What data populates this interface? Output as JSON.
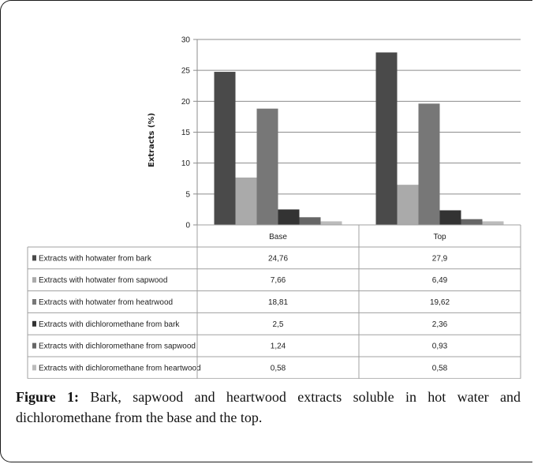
{
  "chart_data": {
    "type": "bar",
    "ylabel": "Extracts (%)",
    "ylim": [
      0,
      30
    ],
    "yticks": [
      "0",
      "5",
      "10",
      "15",
      "20",
      "25",
      "30"
    ],
    "categories": [
      "Base",
      "Top"
    ],
    "series": [
      {
        "name": "Extracts with hotwater from bark",
        "values": [
          24.76,
          27.9
        ],
        "labels": [
          "24,76",
          "27,9"
        ],
        "color": "#4a4a4a"
      },
      {
        "name": "Extracts with hotwater from sapwood",
        "values": [
          7.66,
          6.49
        ],
        "labels": [
          "7,66",
          "6,49"
        ],
        "color": "#aaaaaa"
      },
      {
        "name": "Extracts with hotwater from heatrwood",
        "values": [
          18.81,
          19.62
        ],
        "labels": [
          "18,81",
          "19,62"
        ],
        "color": "#777777"
      },
      {
        "name": "Extracts with dichloromethane from bark",
        "values": [
          2.5,
          2.36
        ],
        "labels": [
          "2,5",
          "2,36"
        ],
        "color": "#333333"
      },
      {
        "name": "Extracts with dichloromethane from sapwood",
        "values": [
          1.24,
          0.93
        ],
        "labels": [
          "1,24",
          "0,93"
        ],
        "color": "#666666"
      },
      {
        "name": "Extracts with dichloromethane from heartwood",
        "values": [
          0.58,
          0.58
        ],
        "labels": [
          "0,58",
          "0,58"
        ],
        "color": "#bbbbbb"
      }
    ],
    "grid": true
  },
  "caption": {
    "label": "Figure 1:",
    "text": " Bark, sapwood and heartwood extracts soluble in hot water and dichloromethane from the base and the top."
  }
}
